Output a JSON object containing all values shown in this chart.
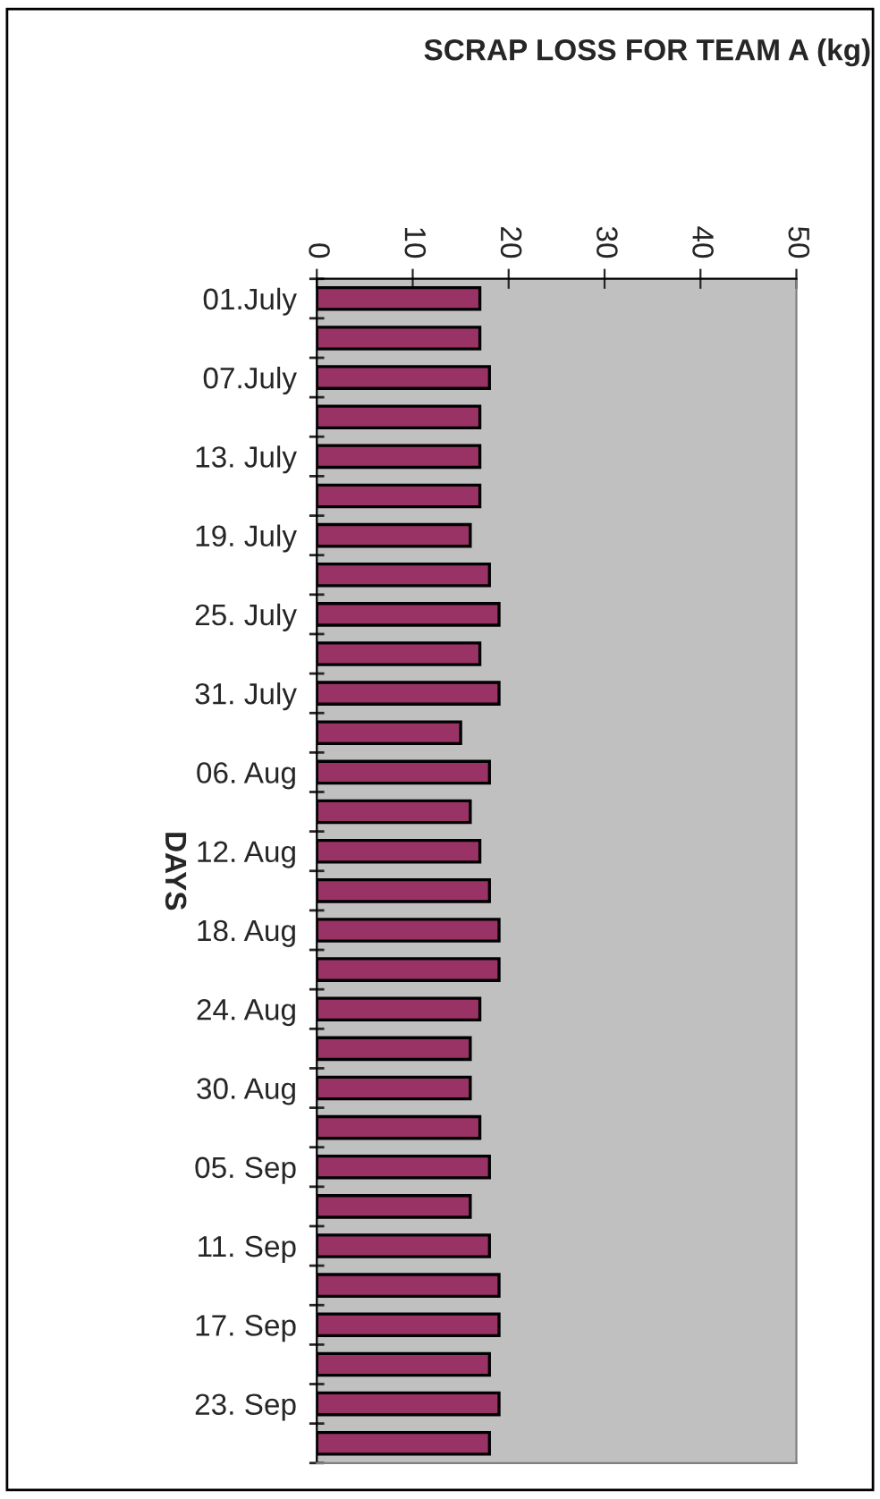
{
  "chart_data": {
    "type": "bar",
    "orientation": "horizontal",
    "title": "SCRAP LOSS FOR TEAM A (kg)",
    "ylabel": "DAYS",
    "categories": [
      "01.July",
      null,
      "07.July",
      null,
      "13. July",
      null,
      "19. July",
      null,
      "25. July",
      null,
      "31. July",
      null,
      "06. Aug",
      null,
      "12. Aug",
      null,
      "18. Aug",
      null,
      "24. Aug",
      null,
      "30. Aug",
      null,
      "05. Sep",
      null,
      "11. Sep",
      null,
      "17. Sep",
      null,
      "23. Sep",
      null
    ],
    "values": [
      17,
      17,
      18,
      17,
      17,
      17,
      16,
      18,
      19,
      17,
      19,
      15,
      18,
      16,
      17,
      18,
      19,
      19,
      17,
      16,
      16,
      17,
      18,
      16,
      18,
      19,
      19,
      18,
      19,
      18
    ],
    "color": "#993366",
    "xlim": [
      0,
      50
    ],
    "xticks": [
      0,
      10,
      20,
      30,
      40,
      50
    ],
    "grid": false,
    "legend": false
  }
}
